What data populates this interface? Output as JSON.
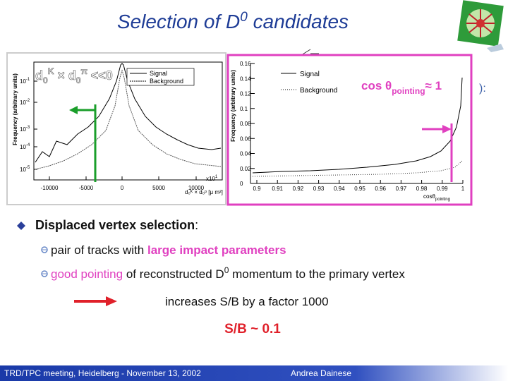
{
  "title": {
    "main": "Selection of D",
    "sup": "0",
    "rest": " candidates"
  },
  "edge_fragment": "):",
  "plots": [
    {
      "y_label": "Frequency (arbitrary units)",
      "y_ticks": [
        {
          "base": "10",
          "exp": "-1"
        },
        {
          "base": "10",
          "exp": "-2"
        },
        {
          "base": "10",
          "exp": "-3"
        },
        {
          "base": "10",
          "exp": "-4"
        },
        {
          "base": "10",
          "exp": "-5"
        }
      ],
      "x_ticks": [
        "-10000",
        "-5000",
        "0",
        "5000",
        "10000"
      ],
      "x_multiplier": {
        "base": "x10",
        "exp": "1"
      },
      "x_label": "d₀ᴷ × d₀ᵖ [μ m²]",
      "legend": [
        "Signal",
        "Background"
      ],
      "overlay": {
        "d": "d",
        "sub1": "0",
        "sup1": "K",
        "times": " × d",
        "sub2": "0",
        "sup2": "π",
        "cond": " <<0"
      }
    },
    {
      "y_label": "Frequency (arbitrary units)",
      "y_ticks": [
        "0",
        "0.02",
        "0.04",
        "0.06",
        "0.08",
        "0.1",
        "0.12",
        "0.14",
        "0.16"
      ],
      "x_ticks": [
        "0.9",
        "0.91",
        "0.92",
        "0.93",
        "0.94",
        "0.95",
        "0.96",
        "0.97",
        "0.98",
        "0.99",
        "1"
      ],
      "x_label": {
        "main": "cosθ",
        "sub": "pointing"
      },
      "legend": [
        "Signal",
        "Background"
      ],
      "overlay": {
        "main": "cos θ",
        "sub": "pointing",
        "rest": "≈ 1"
      }
    }
  ],
  "bullets": {
    "heading": "Displaced vertex selection",
    "colon": ":",
    "items": [
      {
        "plain": "pair of tracks with ",
        "highlight": "large impact parameters"
      },
      {
        "highlight": "good pointing",
        "plain": " of reconstructed D",
        "sup": "0",
        "rest": " momentum to the primary vertex"
      }
    ],
    "result": "increases S/B by a factor 1000",
    "conclusion": "S/B ~ 0.1"
  },
  "footer": {
    "meeting": "TRD/TPC meeting, Heidelberg - November 13, 2002",
    "author": "Andrea Dainese"
  }
}
